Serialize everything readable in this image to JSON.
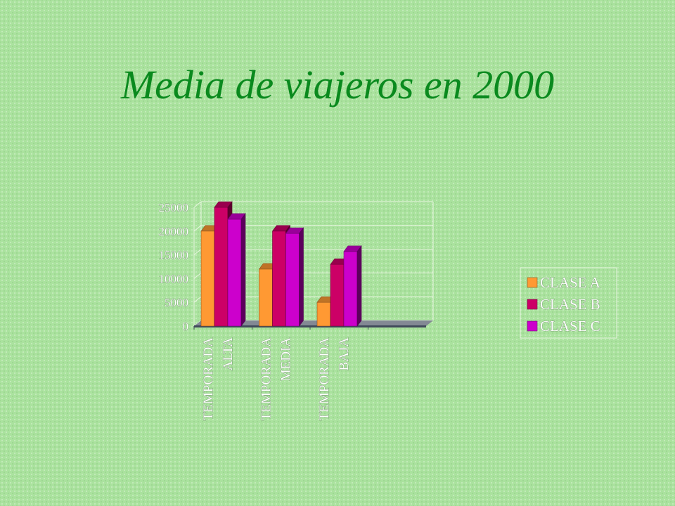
{
  "slide": {
    "title": "Media de viajeros en 2000"
  },
  "chart_data": {
    "type": "bar",
    "title": "",
    "xlabel": "",
    "ylabel": "",
    "ylim": [
      0,
      25000
    ],
    "yticks": [
      0,
      5000,
      10000,
      15000,
      20000,
      25000
    ],
    "categories": [
      "TEMPORADA ALTA",
      "TEMPORADA MEDIA",
      "TEMPORADA BAJA",
      ""
    ],
    "category_label_lines": [
      [
        "TEMPORADA",
        "ALTA"
      ],
      [
        "TEMPORADA",
        "MEDIA"
      ],
      [
        "TEMPORADA",
        "BAJA"
      ],
      []
    ],
    "series": [
      {
        "name": "CLASE A",
        "values": [
          20000,
          12000,
          5000,
          null
        ],
        "color": "#ff9933"
      },
      {
        "name": "CLASE B",
        "values": [
          25000,
          20000,
          13000,
          null
        ],
        "color": "#cc0066"
      },
      {
        "name": "CLASE C",
        "values": [
          22500,
          19500,
          15700,
          null
        ],
        "color": "#cc00cc"
      }
    ],
    "grid": true,
    "style": "3d-column",
    "legend_position": "right",
    "colors": {
      "gridlines": "#e8f5e0",
      "floor": "#404a5a",
      "legend_border": "#e8f5e0"
    }
  }
}
